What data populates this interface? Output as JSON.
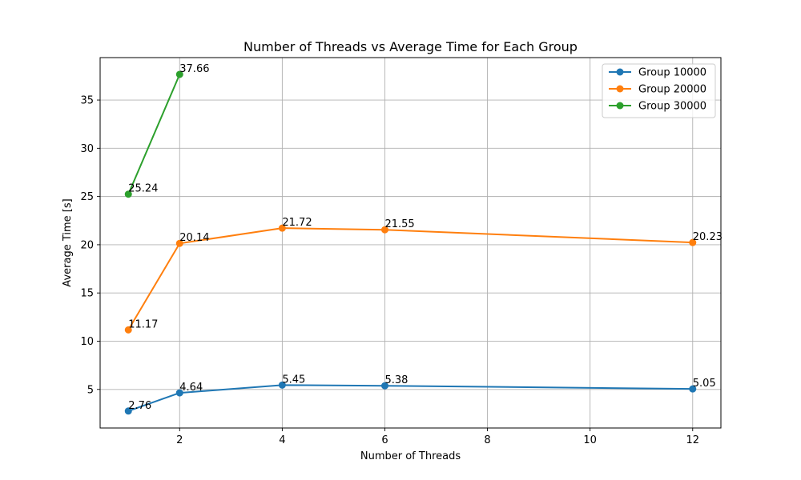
{
  "chart_data": {
    "type": "line",
    "title": "Number of Threads vs Average Time for Each Group",
    "xlabel": "Number of Threads",
    "ylabel": "Average Time [s]",
    "xlim": [
      0.45,
      12.55
    ],
    "ylim": [
      1.0,
      39.4
    ],
    "xticks": [
      2,
      4,
      6,
      8,
      10,
      12
    ],
    "yticks": [
      5,
      10,
      15,
      20,
      25,
      30,
      35
    ],
    "grid": true,
    "legend_position": "top-right",
    "series": [
      {
        "name": "Group 10000",
        "color": "#1f77b4",
        "x": [
          1,
          2,
          4,
          6,
          12
        ],
        "y": [
          2.76,
          4.64,
          5.45,
          5.38,
          5.05
        ],
        "labels": [
          "2.76",
          "4.64",
          "5.45",
          "5.38",
          "5.05"
        ]
      },
      {
        "name": "Group 20000",
        "color": "#ff7f0e",
        "x": [
          1,
          2,
          4,
          6,
          12
        ],
        "y": [
          11.17,
          20.14,
          21.72,
          21.55,
          20.23
        ],
        "labels": [
          "11.17",
          "20.14",
          "21.72",
          "21.55",
          "20.23"
        ]
      },
      {
        "name": "Group 30000",
        "color": "#2ca02c",
        "x": [
          1,
          2
        ],
        "y": [
          25.24,
          37.66
        ],
        "labels": [
          "25.24",
          "37.66"
        ]
      }
    ]
  }
}
